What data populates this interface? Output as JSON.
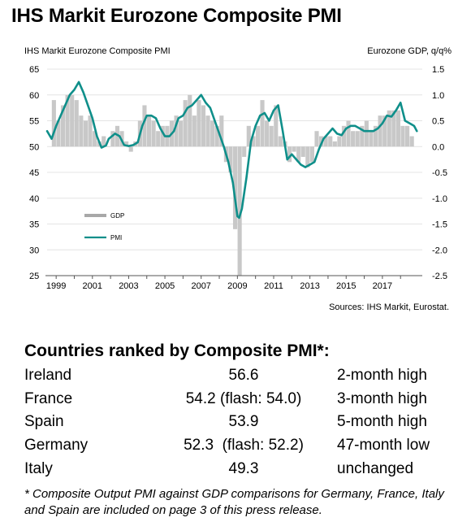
{
  "title": "IHS Markit Eurozone Composite PMI",
  "chart_data": {
    "type": "bar+line",
    "title_left": "IHS Markit Eurozone Composite  PMI",
    "title_right": "Eurozone GDP, q/q%",
    "source": "Sources: IHS Markit, Eurostat.",
    "left_axis": {
      "min": 25,
      "max": 65,
      "ticks": [
        25,
        30,
        35,
        40,
        45,
        50,
        55,
        60,
        65
      ]
    },
    "right_axis": {
      "min": -2.5,
      "max": 1.5,
      "ticks": [
        "-2.5",
        "-2.0",
        "-1.5",
        "-1.0",
        "-0.5",
        "0.0",
        "0.5",
        "1.0",
        "1.5"
      ]
    },
    "x_axis": {
      "min": 1998.5,
      "max": 2019.2,
      "ticks": [
        "1999",
        "2001",
        "2003",
        "2005",
        "2007",
        "2009",
        "2011",
        "2013",
        "2015",
        "2017"
      ]
    },
    "legend": [
      {
        "name": "GDP",
        "color": "#bdbdbd"
      },
      {
        "name": "PMI",
        "color": "#0f8f8a"
      }
    ],
    "gdp": {
      "name": "GDP",
      "x": [
        1998.875,
        1999.125,
        1999.375,
        1999.625,
        1999.875,
        2000.125,
        2000.375,
        2000.625,
        2000.875,
        2001.125,
        2001.375,
        2001.625,
        2001.875,
        2002.125,
        2002.375,
        2002.625,
        2002.875,
        2003.125,
        2003.375,
        2003.625,
        2003.875,
        2004.125,
        2004.375,
        2004.625,
        2004.875,
        2005.125,
        2005.375,
        2005.625,
        2005.875,
        2006.125,
        2006.375,
        2006.625,
        2006.875,
        2007.125,
        2007.375,
        2007.625,
        2007.875,
        2008.125,
        2008.375,
        2008.625,
        2008.875,
        2009.125,
        2009.375,
        2009.625,
        2009.875,
        2010.125,
        2010.375,
        2010.625,
        2010.875,
        2011.125,
        2011.375,
        2011.625,
        2011.875,
        2012.125,
        2012.375,
        2012.625,
        2012.875,
        2013.125,
        2013.375,
        2013.625,
        2013.875,
        2014.125,
        2014.375,
        2014.625,
        2014.875,
        2015.125,
        2015.375,
        2015.625,
        2015.875,
        2016.125,
        2016.375,
        2016.625,
        2016.875,
        2017.125,
        2017.375,
        2017.625,
        2017.875,
        2018.125,
        2018.375,
        2018.625
      ],
      "values": [
        0.9,
        0.5,
        0.8,
        1.0,
        1.0,
        0.9,
        0.6,
        0.5,
        0.6,
        0.3,
        0.1,
        0.2,
        0.0,
        0.3,
        0.4,
        0.3,
        0.1,
        -0.1,
        0.1,
        0.5,
        0.8,
        0.6,
        0.5,
        0.3,
        0.4,
        0.4,
        0.5,
        0.6,
        0.5,
        0.9,
        1.0,
        0.6,
        0.9,
        0.8,
        0.6,
        0.5,
        0.4,
        0.6,
        -0.3,
        -0.5,
        -1.6,
        -2.5,
        -0.2,
        0.4,
        0.2,
        0.4,
        0.9,
        0.5,
        0.4,
        0.8,
        0.2,
        0.1,
        -0.3,
        -0.1,
        -0.3,
        -0.2,
        -0.4,
        -0.3,
        0.3,
        0.2,
        0.2,
        0.2,
        0.1,
        0.2,
        0.4,
        0.5,
        0.3,
        0.3,
        0.4,
        0.5,
        0.3,
        0.4,
        0.6,
        0.6,
        0.7,
        0.7,
        0.7,
        0.4,
        0.4,
        0.2
      ]
    },
    "pmi": {
      "name": "PMI",
      "x": [
        1998.5,
        1998.75,
        1999.0,
        1999.25,
        1999.5,
        1999.75,
        2000.0,
        2000.25,
        2000.5,
        2000.75,
        2001.0,
        2001.25,
        2001.5,
        2001.75,
        2001.9,
        2002.25,
        2002.5,
        2002.75,
        2003.0,
        2003.25,
        2003.5,
        2003.75,
        2004.0,
        2004.25,
        2004.5,
        2004.75,
        2005.0,
        2005.25,
        2005.5,
        2005.75,
        2006.0,
        2006.25,
        2006.5,
        2006.75,
        2007.0,
        2007.25,
        2007.5,
        2007.75,
        2008.0,
        2008.25,
        2008.5,
        2008.75,
        2009.0,
        2009.1,
        2009.25,
        2009.5,
        2009.75,
        2010.0,
        2010.25,
        2010.5,
        2010.75,
        2011.0,
        2011.25,
        2011.5,
        2011.75,
        2012.0,
        2012.25,
        2012.5,
        2012.75,
        2013.0,
        2013.25,
        2013.5,
        2013.75,
        2014.0,
        2014.25,
        2014.5,
        2014.75,
        2015.0,
        2015.25,
        2015.5,
        2015.75,
        2016.0,
        2016.25,
        2016.5,
        2016.75,
        2017.0,
        2017.25,
        2017.5,
        2017.75,
        2018.0,
        2018.25,
        2018.5,
        2018.75,
        2018.9
      ],
      "values": [
        53.0,
        51.5,
        54.0,
        56.0,
        58.0,
        60.0,
        61.0,
        62.5,
        60.5,
        58.0,
        55.5,
        52.0,
        49.8,
        50.2,
        51.5,
        52.5,
        52.0,
        50.3,
        50.1,
        50.3,
        50.8,
        54.0,
        56.0,
        56.0,
        55.5,
        53.5,
        52.0,
        52.0,
        53.0,
        55.5,
        56.0,
        57.5,
        58.0,
        59.0,
        60.0,
        58.5,
        57.5,
        55.0,
        52.5,
        50.0,
        47.0,
        43.0,
        36.5,
        36.2,
        38.0,
        44.0,
        51.0,
        54.0,
        56.0,
        56.5,
        55.0,
        57.0,
        58.0,
        53.0,
        47.5,
        48.5,
        47.5,
        46.5,
        46.0,
        46.5,
        47.0,
        49.5,
        51.5,
        52.5,
        53.5,
        52.5,
        52.2,
        53.5,
        54.0,
        54.0,
        53.5,
        53.0,
        53.0,
        53.0,
        53.5,
        54.5,
        56.0,
        55.8,
        57.0,
        58.5,
        55.0,
        54.5,
        54.0,
        53.0
      ]
    }
  },
  "rankings": {
    "heading": "Countries ranked by Composite PMI*:",
    "rows": [
      {
        "country": "Ireland",
        "value": "56.6",
        "status": "2-month high"
      },
      {
        "country": "France",
        "value": "54.2 (flash: 54.0)",
        "status": "3-month high"
      },
      {
        "country": "Spain",
        "value": "53.9",
        "status": "5-month high"
      },
      {
        "country": "Germany",
        "value": "52.3  (flash: 52.2)",
        "status": "47-month low"
      },
      {
        "country": "Italy",
        "value": "49.3",
        "status": "unchanged"
      }
    ],
    "footnote": "* Composite Output PMI against GDP comparisons for Germany, France, Italy and Spain are included on page 3 of this press release."
  }
}
